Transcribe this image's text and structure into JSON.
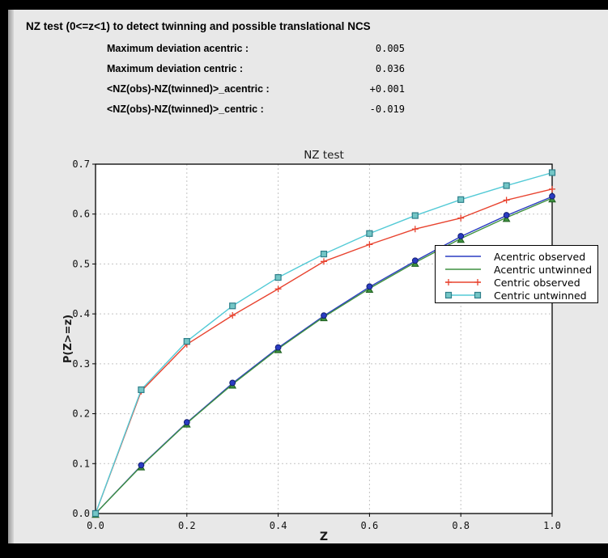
{
  "window": {
    "title": "NZ test (0<=z<1) to detect twinning and possible translational NCS",
    "stats": [
      {
        "label": "Maximum deviation acentric :",
        "value": "0.005"
      },
      {
        "label": "Maximum deviation centric :",
        "value": "0.036"
      },
      {
        "label": "<NZ(obs)-NZ(twinned)>_acentric :",
        "value": "+0.001"
      },
      {
        "label": "<NZ(obs)-NZ(twinned)>_centric :",
        "value": "-0.019"
      }
    ]
  },
  "chart_data": {
    "type": "line",
    "title": "NZ test",
    "xlabel": "Z",
    "ylabel": "P(Z>=z)",
    "xlim": [
      0.0,
      1.0
    ],
    "ylim": [
      0.0,
      0.7
    ],
    "xticks": [
      0.0,
      0.2,
      0.4,
      0.6,
      0.8,
      1.0
    ],
    "xtick_labels": [
      "0.0",
      "0.2",
      "0.4",
      "0.6",
      "0.8",
      "1.0"
    ],
    "yticks": [
      0.0,
      0.1,
      0.2,
      0.3,
      0.4,
      0.5,
      0.6,
      0.7
    ],
    "ytick_labels": [
      "0.0",
      "0.1",
      "0.2",
      "0.3",
      "0.4",
      "0.5",
      "0.6",
      "0.7"
    ],
    "grid": true,
    "legend_position": "upper right",
    "x": [
      0.0,
      0.1,
      0.2,
      0.3,
      0.4,
      0.5,
      0.6,
      0.7,
      0.8,
      0.9,
      1.0
    ],
    "series": [
      {
        "name": "Acentric observed",
        "color": "#2a3cc2",
        "marker": "circle",
        "marker_fill": "#2a3cc2",
        "marker_edge": "#141f73",
        "values": [
          0.0,
          0.096,
          0.182,
          0.261,
          0.332,
          0.396,
          0.454,
          0.506,
          0.555,
          0.597,
          0.635
        ]
      },
      {
        "name": "Acentric untwinned",
        "color": "#3f9140",
        "marker": "triangle",
        "marker_fill": "#3f9140",
        "marker_edge": "#1d5e1e",
        "values": [
          0.0,
          0.095,
          0.181,
          0.259,
          0.33,
          0.394,
          0.451,
          0.503,
          0.551,
          0.593,
          0.632
        ]
      },
      {
        "name": "Centric observed",
        "color": "#e8432f",
        "marker": "plus",
        "marker_fill": "#e8432f",
        "marker_edge": "#e8432f",
        "values": [
          0.0,
          0.245,
          0.339,
          0.397,
          0.45,
          0.505,
          0.539,
          0.57,
          0.592,
          0.628,
          0.65
        ]
      },
      {
        "name": "Centric untwinned",
        "color": "#53cad6",
        "marker": "square",
        "marker_fill": "#74c6c6",
        "marker_edge": "#2e7f8a",
        "values": [
          0.0,
          0.248,
          0.345,
          0.416,
          0.473,
          0.52,
          0.561,
          0.597,
          0.629,
          0.657,
          0.683
        ]
      }
    ],
    "grid_color": "#c3c3c3",
    "axes_bg": "#ffffff",
    "figure_bg": "#e8e8e8"
  }
}
